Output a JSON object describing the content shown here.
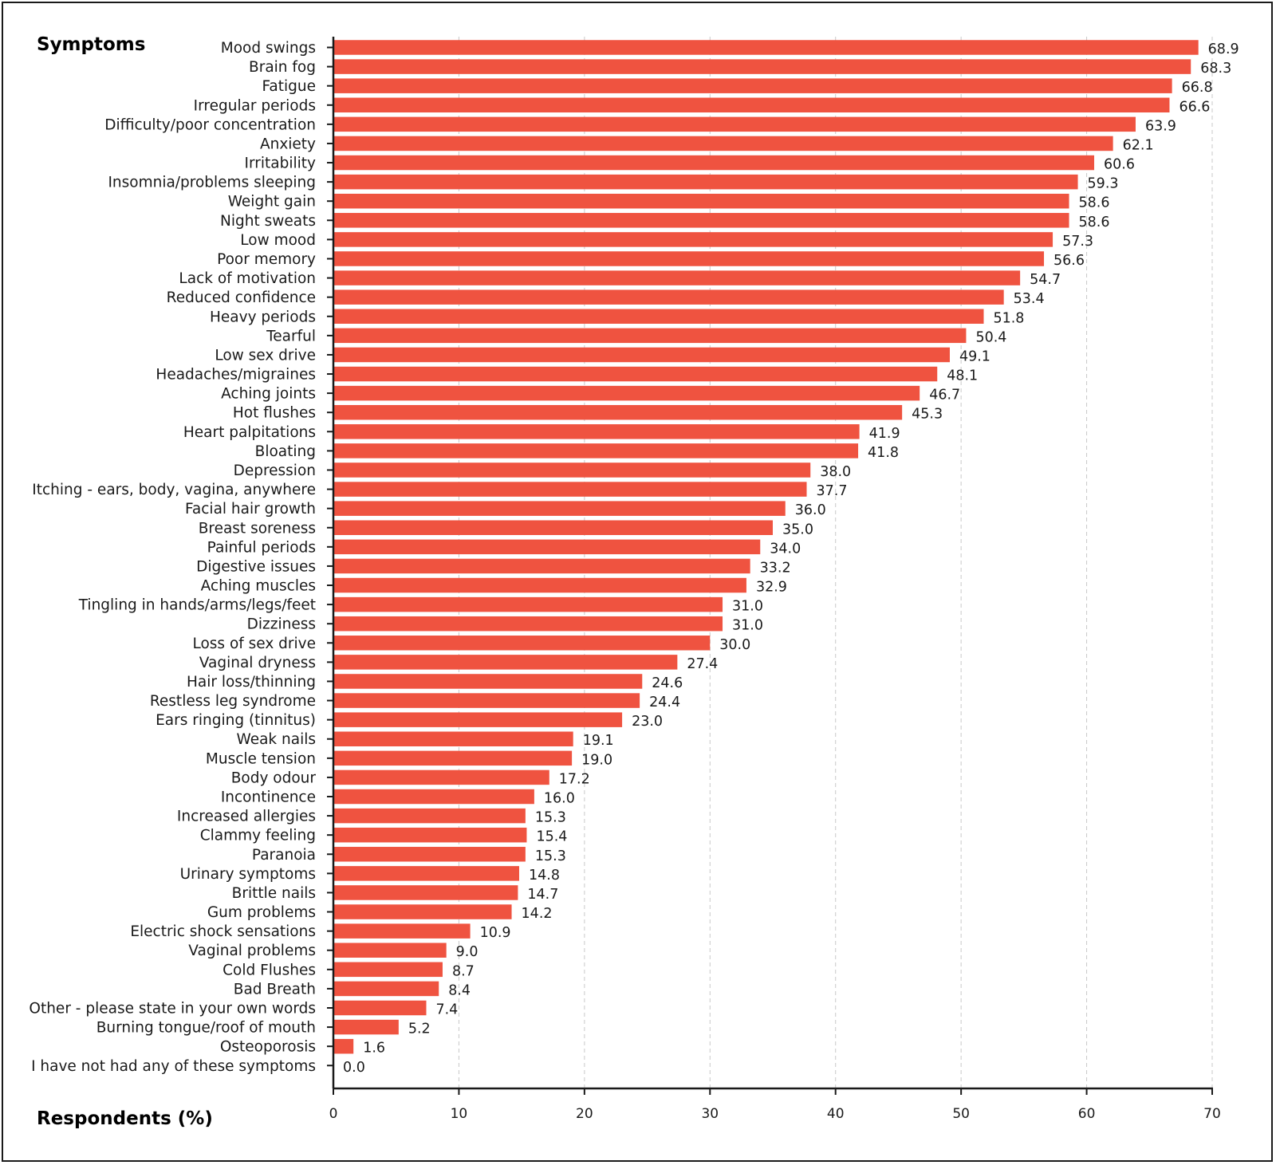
{
  "chart_data": {
    "type": "bar",
    "orientation": "horizontal",
    "ylabel": "Symptoms",
    "xlabel": "Respondents (%)",
    "xlim": [
      0,
      70
    ],
    "xticks": [
      0,
      10,
      20,
      30,
      40,
      50,
      60,
      70
    ],
    "grid": "vertical dashed",
    "bar_color": "#ef5340",
    "categories": [
      "Mood swings",
      "Brain fog",
      "Fatigue",
      "Irregular periods",
      "Difficulty/poor concentration",
      "Anxiety",
      "Irritability",
      "Insomnia/problems sleeping",
      "Weight gain",
      "Night sweats",
      "Low mood",
      "Poor memory",
      "Lack of motivation",
      "Reduced confidence",
      "Heavy periods",
      "Tearful",
      "Low sex drive",
      "Headaches/migraines",
      "Aching joints",
      "Hot flushes",
      "Heart palpitations",
      "Bloating",
      "Depression",
      "Itching - ears, body, vagina, anywhere",
      "Facial hair growth",
      "Breast soreness",
      "Painful periods",
      "Digestive issues",
      "Aching muscles",
      "Tingling in hands/arms/legs/feet",
      "Dizziness",
      "Loss of sex drive",
      "Vaginal dryness",
      "Hair loss/thinning",
      "Restless leg syndrome",
      "Ears ringing (tinnitus)",
      "Weak nails",
      "Muscle tension",
      "Body odour",
      "Incontinence",
      "Increased allergies",
      "Clammy feeling",
      "Paranoia",
      "Urinary symptoms",
      "Brittle nails",
      "Gum problems",
      "Electric shock sensations",
      "Vaginal problems",
      "Cold Flushes",
      "Bad Breath",
      "Other - please state in your own words",
      "Burning tongue/roof of mouth",
      "Osteoporosis",
      "I have not had any of these symptoms"
    ],
    "values": [
      68.9,
      68.3,
      66.8,
      66.6,
      63.9,
      62.1,
      60.6,
      59.3,
      58.6,
      58.6,
      57.3,
      56.6,
      54.7,
      53.4,
      51.8,
      50.4,
      49.1,
      48.1,
      46.7,
      45.3,
      41.9,
      41.8,
      38.0,
      37.7,
      36.0,
      35.0,
      34.0,
      33.2,
      32.9,
      31.0,
      31.0,
      30.0,
      27.4,
      24.6,
      24.4,
      23.0,
      19.1,
      19.0,
      17.2,
      16.0,
      15.3,
      15.4,
      15.3,
      14.8,
      14.7,
      14.2,
      10.9,
      9.0,
      8.7,
      8.4,
      7.4,
      5.2,
      1.6,
      0.0
    ]
  }
}
